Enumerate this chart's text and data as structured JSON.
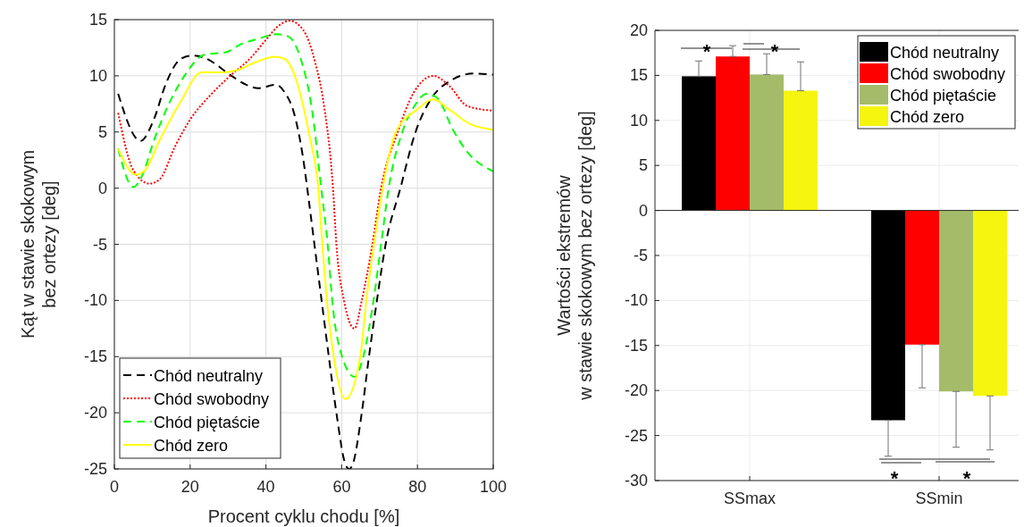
{
  "chart_data": [
    {
      "type": "line",
      "xlabel": "Procent cyklu chodu [%]",
      "ylabel": "Kąt w stawie skokowym\nbez ortezy [deg]",
      "xlim": [
        0,
        100
      ],
      "xticks": [
        0,
        20,
        40,
        60,
        80,
        100
      ],
      "ylim": [
        -25,
        15
      ],
      "yticks": [
        -25,
        -20,
        -15,
        -10,
        -5,
        0,
        5,
        10,
        15
      ],
      "grid": true,
      "legend": "bottom left",
      "series": [
        {
          "name": "Chód neutralny",
          "color": "#000000",
          "line_style": "dashed",
          "x": [
            1,
            6.9,
            10.4,
            13.6,
            17.5,
            20.7,
            23.8,
            30.9,
            34.8,
            38,
            42.7,
            45,
            47.4,
            49.8,
            51.4,
            52.8,
            54.7,
            56.6,
            58.6,
            61,
            62,
            63,
            65.3,
            67.2,
            69.3,
            71.6,
            75.5,
            79.5,
            83.7,
            88.4,
            94.8,
            100
          ],
          "values": [
            8.4,
            4.2,
            6.1,
            9.3,
            11.5,
            11.8,
            11.6,
            10,
            9.2,
            8.9,
            9.2,
            8.5,
            6.7,
            2.7,
            -1.3,
            -5,
            -10,
            -15,
            -20,
            -24.6,
            -25,
            -24.5,
            -20,
            -15,
            -10,
            -5,
            0,
            5,
            8,
            9.5,
            10.2,
            10.1
          ]
        },
        {
          "name": "Chód swobodny",
          "color": "#ff0000",
          "line_style": "dotted",
          "x": [
            1,
            5,
            9.3,
            12,
            16,
            20,
            25.4,
            30.9,
            35.7,
            40,
            43.5,
            46.3,
            49.8,
            53,
            55.4,
            57.7,
            58.6,
            60.6,
            63.4,
            65.3,
            68.1,
            70.4,
            74.8,
            79,
            84.2,
            88.4,
            93.2,
            100
          ],
          "values": [
            6.7,
            1.6,
            0.4,
            0.8,
            3.7,
            6.1,
            8.3,
            10.1,
            11.5,
            13.2,
            14.5,
            14.9,
            14.1,
            11.2,
            7.2,
            0,
            -5,
            -10,
            -12.5,
            -10,
            -5,
            0,
            5,
            8.5,
            10,
            9.1,
            7.3,
            6.9
          ]
        },
        {
          "name": "Chód piętaście",
          "color": "#00ff00",
          "line_style": "dashed",
          "x": [
            1,
            5,
            7.3,
            10.5,
            14.4,
            18.3,
            23.9,
            29.4,
            33.3,
            38,
            42.8,
            45.9,
            49,
            52.2,
            54.6,
            56.3,
            57.5,
            60.1,
            63.4,
            65.7,
            68.4,
            70.4,
            72.4,
            76,
            79,
            82.5,
            85.3,
            89.2,
            93.2,
            100
          ],
          "values": [
            3.5,
            0.1,
            1.1,
            4.3,
            7.5,
            9.9,
            11.9,
            12.1,
            12.8,
            13.3,
            13.7,
            13.5,
            11.7,
            6.9,
            0,
            -5,
            -10,
            -15,
            -16.8,
            -15,
            -10,
            -5,
            0,
            5,
            7.2,
            8.4,
            8,
            5.3,
            3.2,
            1.5
          ]
        },
        {
          "name": "Chód zero",
          "color": "#ffff00",
          "line_style": "solid",
          "x": [
            1,
            5.7,
            8.1,
            12,
            17.5,
            23,
            27.8,
            32.5,
            37.2,
            42.4,
            45,
            48.3,
            51.4,
            53.8,
            54.9,
            56.1,
            57.9,
            61,
            64.9,
            66.5,
            68.5,
            70.8,
            74.3,
            79.9,
            84.2,
            88.4,
            93.9,
            100
          ],
          "values": [
            3.5,
            1.2,
            1.6,
            4.3,
            7.7,
            10.3,
            10.3,
            10.5,
            11.2,
            11.7,
            11.5,
            9.3,
            4.8,
            0,
            -5,
            -10,
            -15,
            -18.8,
            -15,
            -10,
            -5,
            0,
            5,
            7,
            7.9,
            7,
            5.7,
            5.2
          ]
        }
      ]
    },
    {
      "type": "bar",
      "ylabel": "Wartości ekstremów\nw stawie skokowym bez ortezy [deg]",
      "categories": [
        "SSmax",
        "SSmin"
      ],
      "ylim": [
        -30,
        20
      ],
      "yticks": [
        -30,
        -25,
        -20,
        -15,
        -10,
        -5,
        0,
        5,
        10,
        15,
        20
      ],
      "grid": true,
      "legend": "top right",
      "annotations": [
        "*",
        "*",
        "*",
        "*"
      ],
      "series": [
        {
          "name": "Chód neutralny",
          "color": "#000000",
          "values": [
            14.9,
            -23.3
          ],
          "errors": [
            [
              14.9,
              16.6
            ],
            [
              -27.3,
              -23.3
            ]
          ]
        },
        {
          "name": "Chód swobodny",
          "color": "#ff0000",
          "values": [
            17.1,
            -14.9
          ],
          "errors": [
            [
              17.1,
              18.3
            ],
            [
              -19.7,
              -14.9
            ]
          ]
        },
        {
          "name": "Chód piętaście",
          "color": "#a4bc6a",
          "values": [
            15.1,
            -20.1
          ],
          "errors": [
            [
              15.1,
              17.4
            ],
            [
              -26.3,
              -20.1
            ]
          ]
        },
        {
          "name": "Chód zero",
          "color": "#f5f50f",
          "values": [
            13.3,
            -20.6
          ],
          "errors": [
            [
              13.3,
              16.5
            ],
            [
              -26.6,
              -20.6
            ]
          ]
        }
      ]
    }
  ]
}
